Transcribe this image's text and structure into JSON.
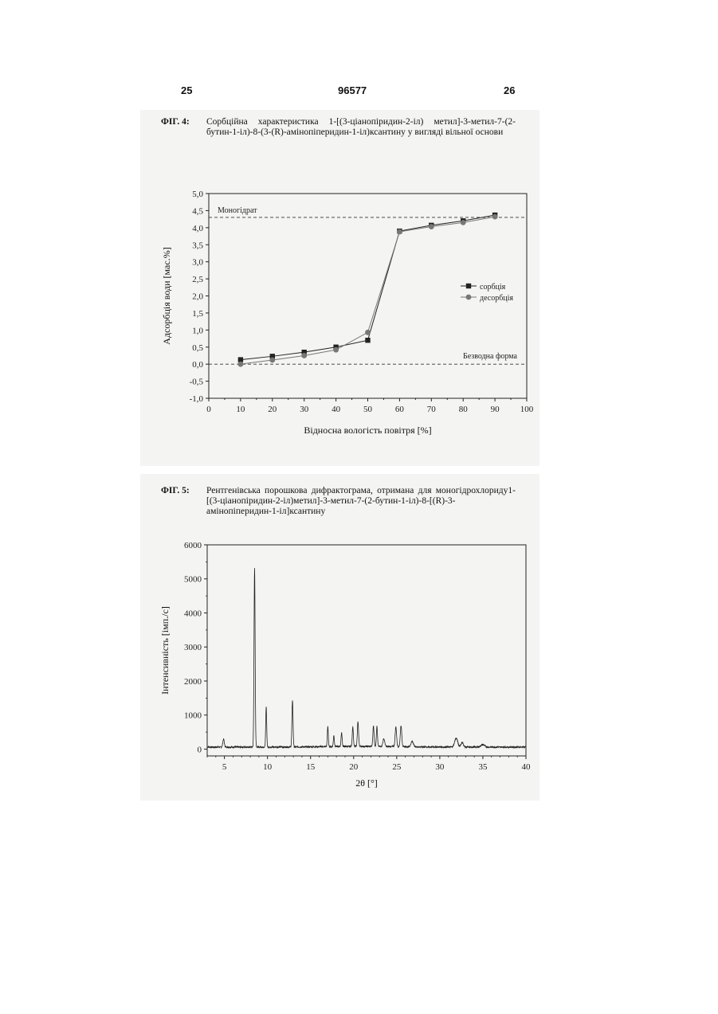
{
  "header": {
    "left_page": "25",
    "center_number": "96577",
    "right_page": "26"
  },
  "figures": [
    {
      "label": "ФІГ. 4:",
      "caption": "Сорбційна характеристика 1-[(3-ціанопіридин-2-іл) метил]-3-метил-7-(2-бутин-1-іл)-8-(3-(R)-амінопіперидин-1-іл)ксантину у вигляді вільної основи"
    },
    {
      "label": "ФІГ. 5:",
      "caption": "Рентгенівська порошкова дифрактограма, отримана для моногідрохлориду1-[(3-ціанопіридин-2-іл)метил]-3-метил-7-(2-бутин-1-іл)-8-[(R)-3-амінопіперидин-1-іл]ксантину"
    }
  ],
  "chart_data": [
    {
      "type": "line",
      "xlabel": "Відносна вологість повітря [%]",
      "ylabel": "Адсорбція води [мас.%]",
      "xlim": [
        0,
        100
      ],
      "ylim": [
        -1.0,
        5.0
      ],
      "x_ticks": [
        "0",
        "10",
        "20",
        "30",
        "40",
        "50",
        "60",
        "70",
        "80",
        "90",
        "100"
      ],
      "y_ticks": [
        "5,0",
        "4,5",
        "4,0",
        "3,5",
        "3,0",
        "2,5",
        "2,0",
        "1,5",
        "1,0",
        "0,5",
        "0,0",
        "-0,5",
        "-1,0"
      ],
      "legend_position": "right",
      "series": [
        {
          "name": "сорбція",
          "marker": "square",
          "color": "#222222",
          "x": [
            10,
            20,
            30,
            40,
            50,
            60,
            70,
            80,
            90
          ],
          "y": [
            0.13,
            0.23,
            0.35,
            0.5,
            0.7,
            3.9,
            4.07,
            4.2,
            4.37
          ]
        },
        {
          "name": "десорбція",
          "marker": "circle",
          "color": "#777777",
          "x": [
            10,
            20,
            30,
            40,
            50,
            60,
            70,
            80,
            90
          ],
          "y": [
            0.0,
            0.12,
            0.25,
            0.42,
            0.93,
            3.88,
            4.03,
            4.15,
            4.32
          ]
        }
      ],
      "reference_lines": [
        {
          "y": 4.3,
          "label": "Моногідрат"
        },
        {
          "y": 0.0,
          "label": "Безводна форма"
        }
      ]
    },
    {
      "type": "line",
      "xlabel": "2θ [°]",
      "ylabel": "Інтенсивність [імп./с]",
      "xlim": [
        3,
        40
      ],
      "ylim": [
        -200,
        6000
      ],
      "x_ticks": [
        "5",
        "10",
        "15",
        "20",
        "25",
        "30",
        "35",
        "40"
      ],
      "y_ticks": [
        "6000",
        "5000",
        "4000",
        "3000",
        "2000",
        "1000",
        "0"
      ],
      "baseline": 60,
      "peaks": [
        {
          "x": 4.9,
          "y": 230,
          "w": 0.12
        },
        {
          "x": 8.5,
          "y": 5250,
          "w": 0.09
        },
        {
          "x": 9.85,
          "y": 1180,
          "w": 0.08
        },
        {
          "x": 12.9,
          "y": 1380,
          "w": 0.09
        },
        {
          "x": 17.0,
          "y": 600,
          "w": 0.08
        },
        {
          "x": 17.7,
          "y": 330,
          "w": 0.08
        },
        {
          "x": 18.6,
          "y": 400,
          "w": 0.09
        },
        {
          "x": 19.9,
          "y": 580,
          "w": 0.09
        },
        {
          "x": 20.5,
          "y": 720,
          "w": 0.1
        },
        {
          "x": 22.3,
          "y": 600,
          "w": 0.1
        },
        {
          "x": 22.7,
          "y": 590,
          "w": 0.09
        },
        {
          "x": 23.5,
          "y": 220,
          "w": 0.15
        },
        {
          "x": 24.9,
          "y": 580,
          "w": 0.12
        },
        {
          "x": 25.5,
          "y": 620,
          "w": 0.12
        },
        {
          "x": 26.8,
          "y": 160,
          "w": 0.2
        },
        {
          "x": 31.9,
          "y": 260,
          "w": 0.25
        },
        {
          "x": 32.6,
          "y": 130,
          "w": 0.2
        },
        {
          "x": 35.0,
          "y": 70,
          "w": 0.3
        }
      ]
    }
  ]
}
